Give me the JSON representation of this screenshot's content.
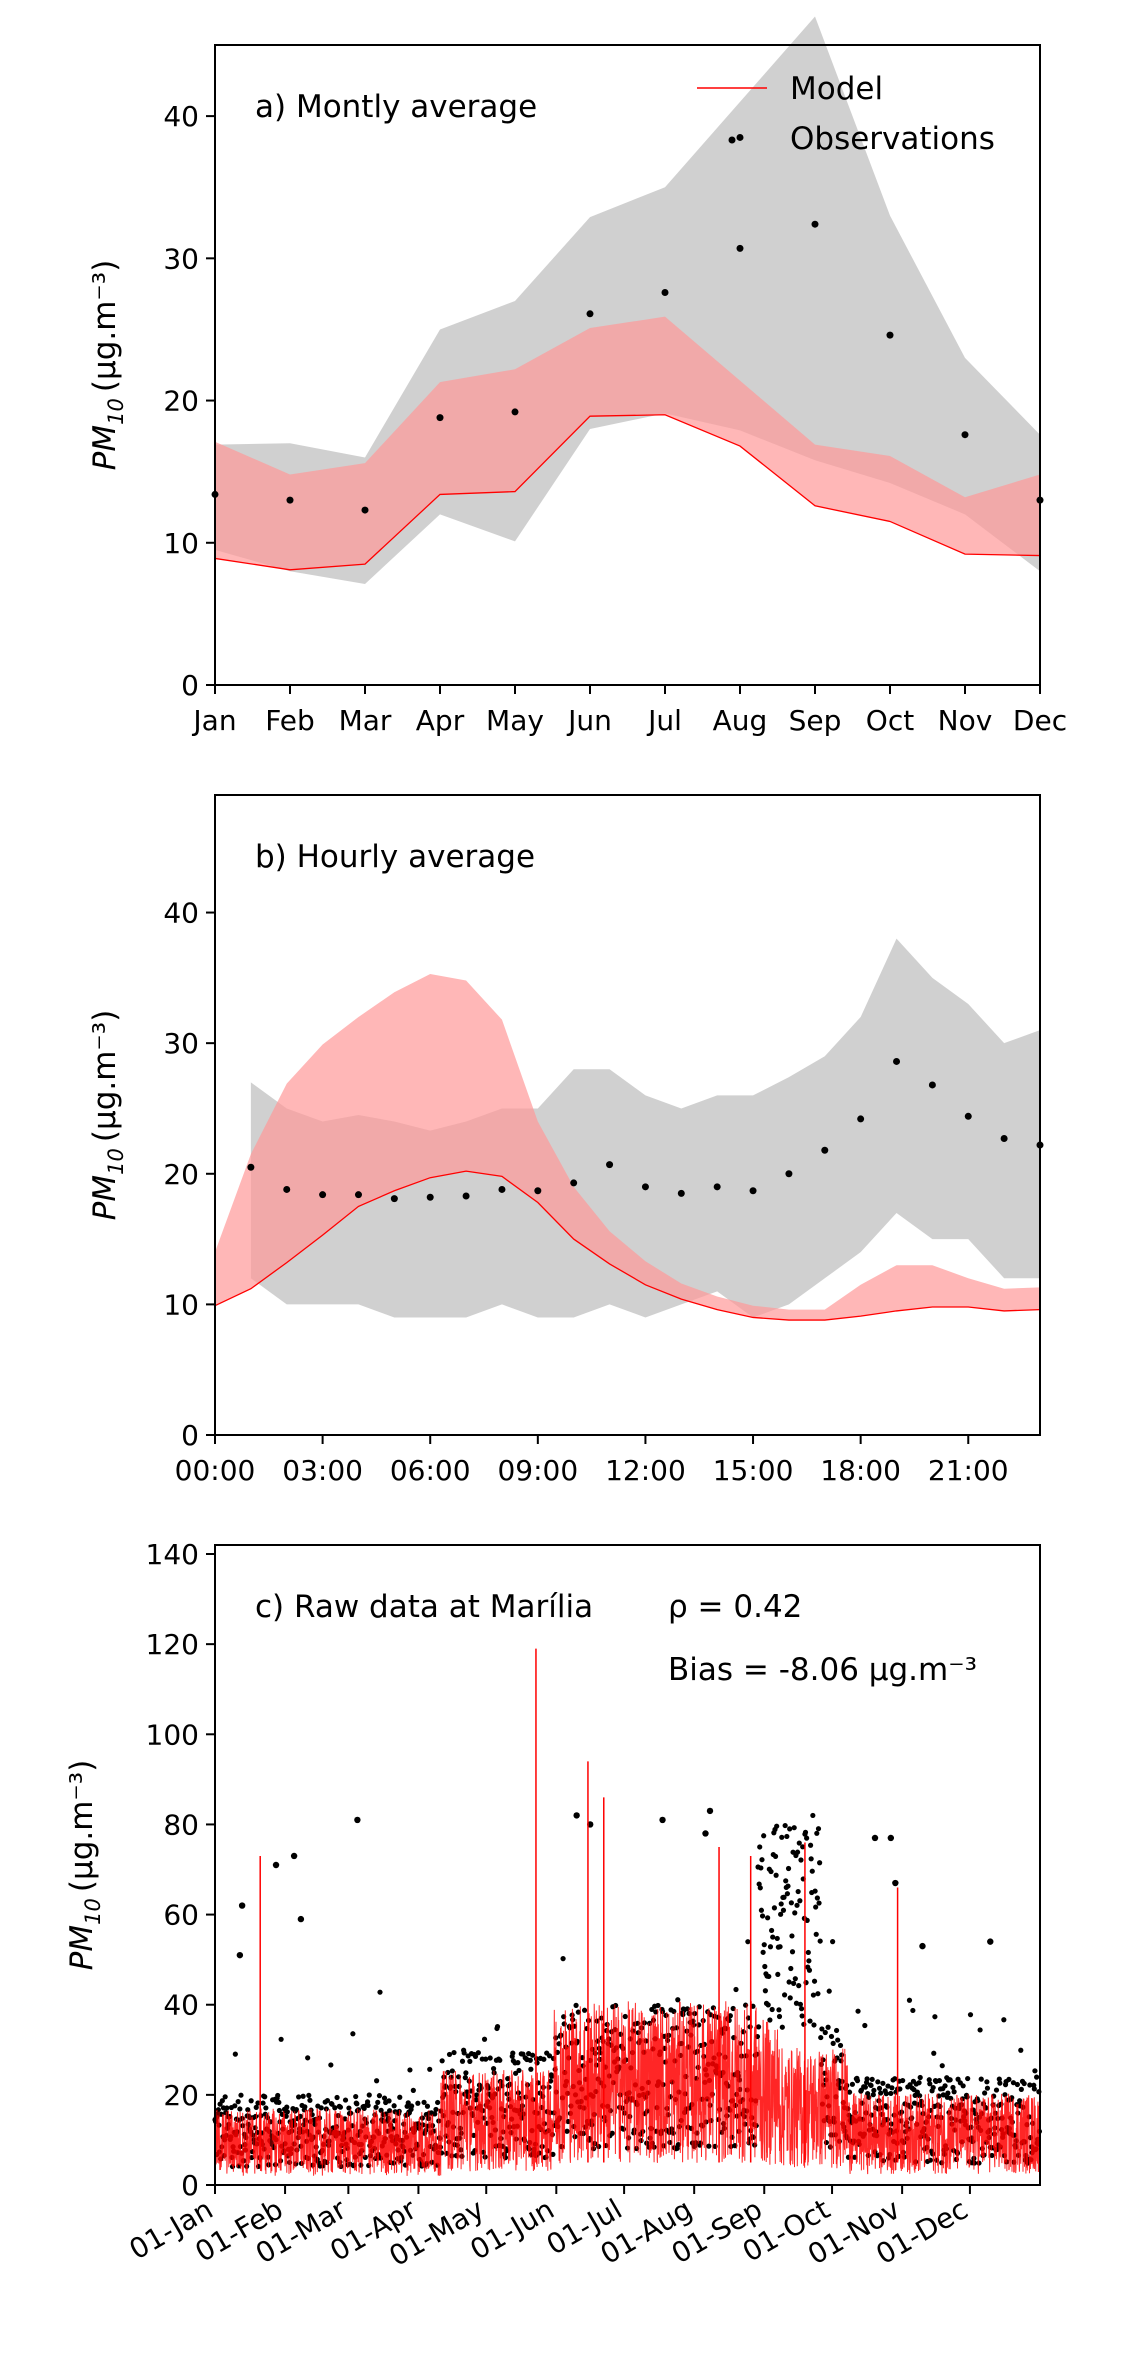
{
  "colors": {
    "model_line": "#ff0000",
    "model_band": "#ff9999",
    "obs_band": "#c8c8c8",
    "obs_points": "#000000"
  },
  "ylabel": {
    "base": "PM",
    "sub": "10",
    "units": "(μg.m⁻³)"
  },
  "chart_data": [
    {
      "type": "line",
      "title": "a) Montly average",
      "legend": {
        "placement": "top-right",
        "entries": [
          "Model",
          "Observations"
        ]
      },
      "categories": [
        "Jan",
        "Feb",
        "Mar",
        "Apr",
        "May",
        "Jun",
        "Jul",
        "Aug",
        "Sep",
        "Oct",
        "Nov",
        "Dec"
      ],
      "ylim": [
        0,
        45
      ],
      "yticks": [
        0,
        10,
        20,
        30,
        40
      ],
      "series": [
        {
          "name": "Model",
          "values": [
            8.9,
            8.1,
            8.5,
            13.4,
            13.6,
            18.9,
            19.0,
            16.8,
            12.6,
            11.5,
            9.2,
            9.1
          ],
          "upper": [
            17.1,
            14.8,
            15.6,
            21.3,
            22.2,
            25.1,
            25.9,
            21.4,
            16.9,
            16.1,
            13.2,
            14.8
          ]
        },
        {
          "name": "Observations",
          "values": [
            13.4,
            13.0,
            12.3,
            18.8,
            19.2,
            26.1,
            27.6,
            30.7,
            32.4,
            24.6,
            17.6,
            13.0
          ],
          "lower": [
            9.5,
            8.0,
            7.1,
            12.0,
            10.1,
            18.0,
            19.1,
            17.9,
            15.8,
            14.2,
            12.0,
            8.0
          ],
          "upper": [
            16.9,
            17.0,
            16.0,
            25.0,
            27.0,
            32.9,
            35.0,
            41.0,
            47.0,
            33.0,
            23.0,
            17.6
          ],
          "extra_points": [
            {
              "x": "Aug",
              "y": 38.5
            }
          ]
        }
      ]
    },
    {
      "type": "line",
      "title": "b) Hourly average",
      "x": [
        0,
        1,
        2,
        3,
        4,
        5,
        6,
        7,
        8,
        9,
        10,
        11,
        12,
        13,
        14,
        15,
        16,
        17,
        18,
        19,
        20,
        21,
        22,
        23
      ],
      "xticks": [
        "00:00",
        "03:00",
        "06:00",
        "09:00",
        "12:00",
        "15:00",
        "18:00",
        "21:00"
      ],
      "ylim": [
        0,
        49
      ],
      "yticks": [
        0,
        10,
        20,
        30,
        40
      ],
      "series": [
        {
          "name": "Model",
          "values": [
            9.9,
            11.2,
            13.2,
            15.3,
            17.5,
            18.7,
            19.7,
            20.2,
            19.8,
            17.8,
            15.0,
            13.1,
            11.5,
            10.4,
            9.6,
            9.0,
            8.8,
            8.8,
            9.1,
            9.5,
            9.8,
            9.8,
            9.5,
            9.6
          ],
          "upper": [
            14.0,
            21.5,
            26.9,
            29.9,
            32.0,
            33.9,
            35.3,
            34.8,
            31.8,
            24.0,
            19.0,
            15.6,
            13.3,
            11.6,
            10.6,
            9.9,
            9.6,
            9.6,
            11.5,
            13.0,
            13.0,
            12.0,
            11.2,
            11.3
          ]
        },
        {
          "name": "Observations",
          "values": [
            null,
            20.5,
            18.8,
            18.4,
            18.4,
            18.1,
            18.2,
            18.3,
            18.8,
            18.7,
            19.3,
            20.7,
            19.0,
            18.5,
            19.0,
            18.7,
            20.0,
            21.8,
            24.2,
            28.6,
            26.8,
            24.4,
            22.7,
            22.2
          ],
          "lower": [
            null,
            12.0,
            10.0,
            10.0,
            10.0,
            9.0,
            9.0,
            9.0,
            10.0,
            9.0,
            9.0,
            10.0,
            9.0,
            10.0,
            11.0,
            9.0,
            10.0,
            12.0,
            14.0,
            17.0,
            15.0,
            15.0,
            12.0,
            12.0
          ],
          "upper": [
            null,
            27.0,
            25.0,
            24.0,
            24.5,
            24.0,
            23.3,
            24.0,
            25.0,
            25.0,
            28.0,
            28.0,
            26.0,
            25.0,
            26.0,
            26.0,
            27.4,
            29.0,
            32.0,
            38.0,
            35.0,
            33.0,
            30.0,
            31.0
          ]
        }
      ]
    },
    {
      "type": "line",
      "title": "c) Raw data at Marília",
      "annotations": [
        "ρ = 0.42",
        "Bias = -8.06 μg.m⁻³"
      ],
      "xticks": [
        "01-Jan",
        "01-Feb",
        "01-Mar",
        "01-Apr",
        "01-May",
        "01-Jun",
        "01-Jul",
        "01-Aug",
        "01-Sep",
        "01-Oct",
        "01-Nov",
        "01-Dec"
      ],
      "ylim": [
        0,
        142
      ],
      "yticks": [
        0,
        20,
        40,
        60,
        80,
        100,
        120,
        140
      ],
      "series": [
        {
          "name": "Model",
          "values_note_free": true,
          "peaks": [
            {
              "x": "2019-01-21",
              "y": 73
            },
            {
              "x": "2019-05-23",
              "y": 119
            },
            {
              "x": "2019-06-15",
              "y": 94
            },
            {
              "x": "2019-06-22",
              "y": 86
            },
            {
              "x": "2019-08-12",
              "y": 75
            },
            {
              "x": "2019-08-26",
              "y": 73
            },
            {
              "x": "2019-09-19",
              "y": 76
            },
            {
              "x": "2019-10-30",
              "y": 66
            }
          ]
        },
        {
          "name": "Observations",
          "outliers": [
            {
              "x": "2019-01-13",
              "y": 62
            },
            {
              "x": "2019-01-12",
              "y": 51
            },
            {
              "x": "2019-01-28",
              "y": 71
            },
            {
              "x": "2019-02-05",
              "y": 73
            },
            {
              "x": "2019-02-08",
              "y": 59
            },
            {
              "x": "2019-03-05",
              "y": 81
            },
            {
              "x": "2019-06-10",
              "y": 82
            },
            {
              "x": "2019-06-16",
              "y": 80
            },
            {
              "x": "2019-07-18",
              "y": 81
            },
            {
              "x": "2019-08-06",
              "y": 78
            },
            {
              "x": "2019-08-08",
              "y": 83
            },
            {
              "x": "2019-10-20",
              "y": 77
            },
            {
              "x": "2019-10-27",
              "y": 77
            },
            {
              "x": "2019-10-29",
              "y": 67
            },
            {
              "x": "2019-11-10",
              "y": 53
            },
            {
              "x": "2019-12-10",
              "y": 54
            }
          ]
        }
      ]
    }
  ]
}
